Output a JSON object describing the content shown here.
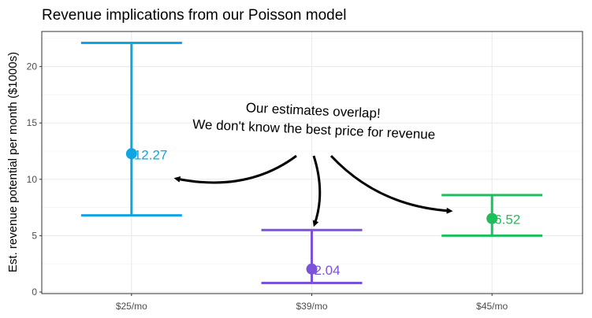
{
  "chart_data": {
    "type": "errorbar",
    "title": "Revenue implications from our Poisson model",
    "xlabel": "",
    "ylabel": "Est. revenue potential per month ($1000s)",
    "categories": [
      "$25/mo",
      "$39/mo",
      "$45/mo"
    ],
    "values": [
      12.27,
      2.04,
      6.52
    ],
    "value_labels": [
      "12.27",
      "2.04",
      "6.52"
    ],
    "lower": [
      6.8,
      0.8,
      5.0
    ],
    "upper": [
      22.1,
      5.5,
      8.6
    ],
    "colors": [
      "#0ea5e1",
      "#7b52d9",
      "#1fbe5c"
    ],
    "ylim": [
      0,
      23
    ],
    "yticks": [
      0,
      5,
      10,
      15,
      20
    ],
    "grid": true,
    "legend": "none",
    "annotation": {
      "lines": [
        "Our estimates overlap!",
        "We don't know the best price for revenue"
      ]
    }
  }
}
